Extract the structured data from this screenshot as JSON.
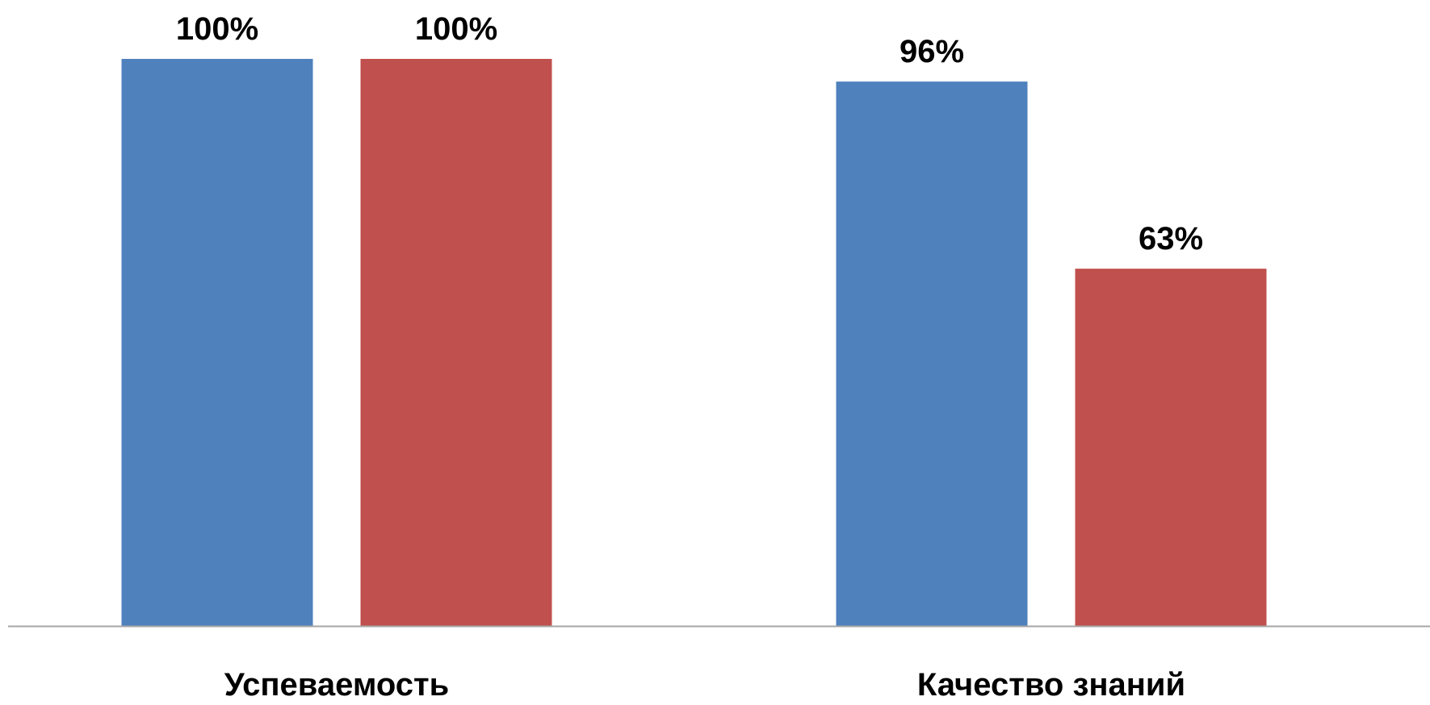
{
  "chart_data": {
    "type": "bar",
    "categories": [
      "Успеваемость",
      "Качество знаний"
    ],
    "series": [
      {
        "values": [
          100,
          96
        ],
        "labels": [
          "100%",
          "96%"
        ],
        "color": "#4F81BD"
      },
      {
        "values": [
          100,
          63
        ],
        "labels": [
          "100%",
          "63%"
        ],
        "color": "#C0504D"
      }
    ],
    "ylim": [
      0,
      100
    ],
    "grid": false,
    "axis_color": "#A6A6A6"
  }
}
